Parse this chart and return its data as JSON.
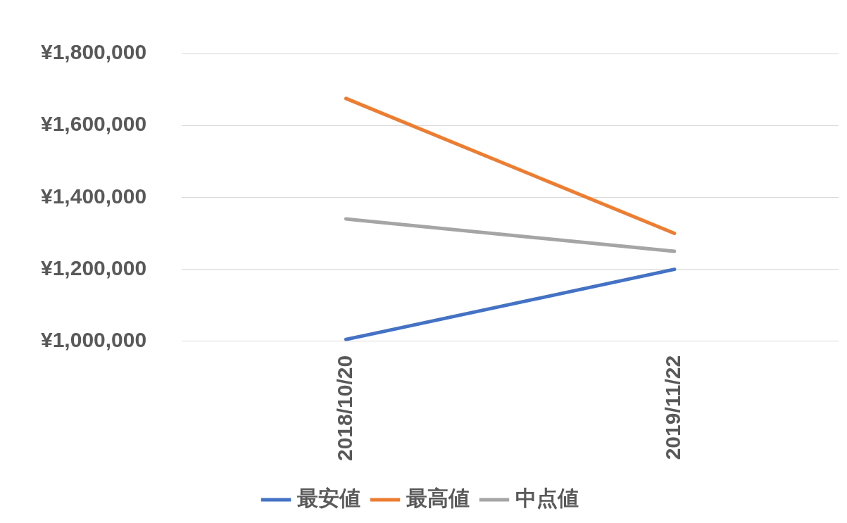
{
  "chart_data": {
    "type": "line",
    "categories": [
      "2018/10/20",
      "2019/11/22"
    ],
    "series": [
      {
        "name": "最安値",
        "color": "#4472c4",
        "values": [
          1005000,
          1200000
        ]
      },
      {
        "name": "最高値",
        "color": "#ed7d31",
        "values": [
          1675000,
          1300000
        ]
      },
      {
        "name": "中点値",
        "color": "#a5a5a5",
        "values": [
          1340000,
          1250000
        ]
      }
    ],
    "ylim": [
      1000000,
      1800000
    ],
    "yticks": [
      {
        "value": 1000000,
        "label": "¥1,000,000"
      },
      {
        "value": 1200000,
        "label": "¥1,200,000"
      },
      {
        "value": 1400000,
        "label": "¥1,400,000"
      },
      {
        "value": 1600000,
        "label": "¥1,600,000"
      },
      {
        "value": 1800000,
        "label": "¥1,800,000"
      }
    ],
    "grid": "y",
    "legend": "bottom",
    "marker": "none",
    "line_style": "solid"
  }
}
